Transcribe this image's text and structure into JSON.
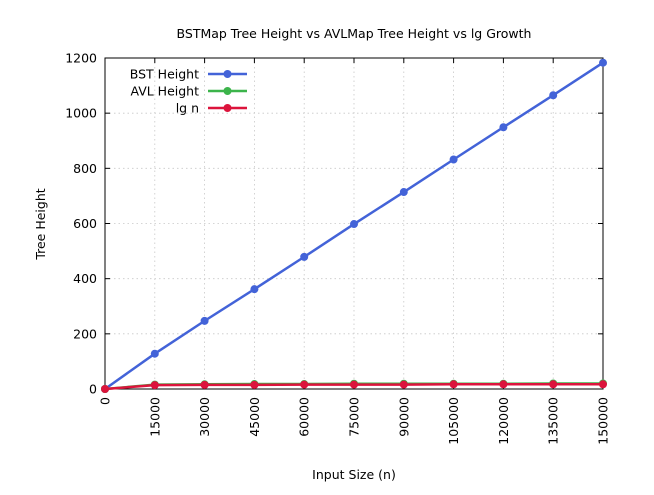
{
  "chart_data": {
    "type": "line",
    "title": "BSTMap Tree Height vs AVLMap Tree Height vs lg Growth",
    "xlabel": "Input Size (n)",
    "ylabel": "Tree Height",
    "xlim": [
      0,
      150000
    ],
    "ylim": [
      0,
      1200
    ],
    "x_ticks": [
      "0",
      "15000",
      "30000",
      "45000",
      "60000",
      "75000",
      "90000",
      "105000",
      "120000",
      "135000",
      "150000"
    ],
    "y_ticks": [
      "0",
      "200",
      "400",
      "600",
      "800",
      "1000",
      "1200"
    ],
    "grid": true,
    "legend_position": "top-left",
    "x": [
      0,
      15000,
      30000,
      45000,
      60000,
      75000,
      90000,
      105000,
      120000,
      135000,
      150000
    ],
    "series": [
      {
        "name": "BST Height",
        "color": "#4363d8",
        "values": [
          0,
          128,
          247,
          362,
          479,
          598,
          714,
          832,
          949,
          1065,
          1183
        ]
      },
      {
        "name": "AVL Height",
        "color": "#3cb44b",
        "values": [
          0,
          16,
          17,
          18,
          18,
          19,
          19,
          19,
          19,
          20,
          20
        ]
      },
      {
        "name": "lg n",
        "color": "#dc143c",
        "values": [
          0,
          14,
          15,
          15,
          16,
          16,
          16,
          17,
          17,
          17,
          17
        ]
      }
    ]
  }
}
